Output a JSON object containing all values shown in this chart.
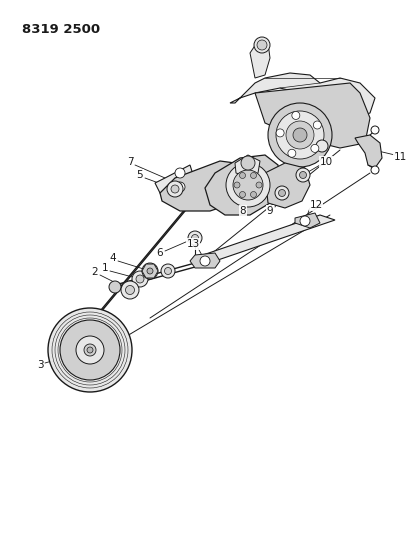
{
  "title_code": "8319 2500",
  "background_color": "#ffffff",
  "fig_width": 4.1,
  "fig_height": 5.33,
  "dpi": 100,
  "line_color": "#1a1a1a",
  "text_color": "#1a1a1a",
  "title_fontsize": 9.5,
  "label_fontsize": 7.5,
  "gray_light": "#e8e8e8",
  "gray_mid": "#d0d0d0",
  "gray_dark": "#b8b8b8",
  "white": "#ffffff"
}
